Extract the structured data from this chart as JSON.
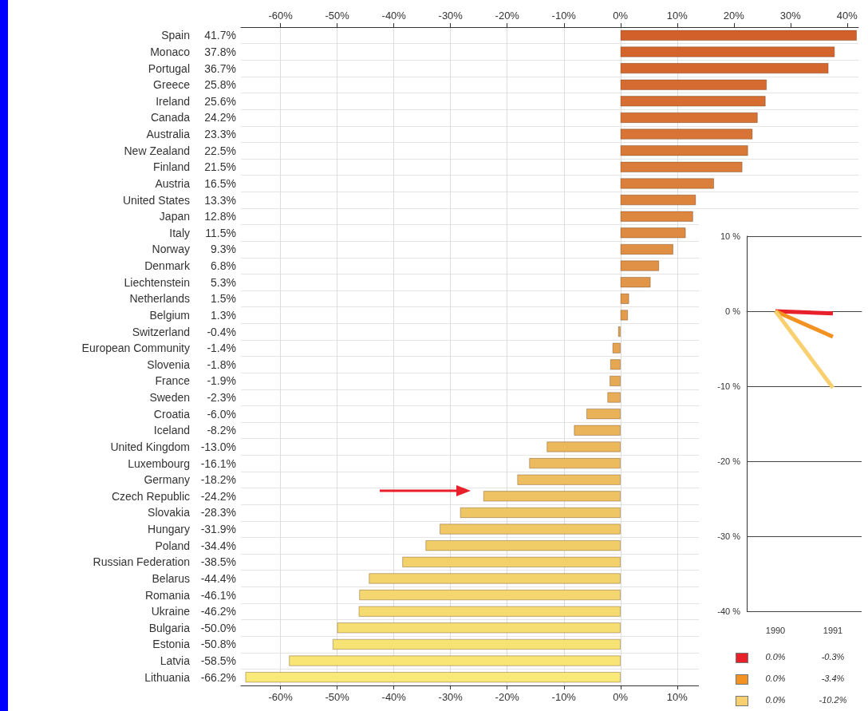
{
  "chart_data": [
    {
      "type": "bar",
      "orientation": "horizontal",
      "categories": [
        "Spain",
        "Monaco",
        "Portugal",
        "Greece",
        "Ireland",
        "Canada",
        "Australia",
        "New Zealand",
        "Finland",
        "Austria",
        "United States",
        "Japan",
        "Italy",
        "Norway",
        "Denmark",
        "Liechtenstein",
        "Netherlands",
        "Belgium",
        "Switzerland",
        "European Community",
        "Slovenia",
        "France",
        "Sweden",
        "Croatia",
        "Iceland",
        "United Kingdom",
        "Luxembourg",
        "Germany",
        "Czech Republic",
        "Slovakia",
        "Hungary",
        "Poland",
        "Russian Federation",
        "Belarus",
        "Romania",
        "Ukraine",
        "Bulgaria",
        "Estonia",
        "Latvia",
        "Lithuania"
      ],
      "values": [
        41.7,
        37.8,
        36.7,
        25.8,
        25.6,
        24.2,
        23.3,
        22.5,
        21.5,
        16.5,
        13.3,
        12.8,
        11.5,
        9.3,
        6.8,
        5.3,
        1.5,
        1.3,
        -0.4,
        -1.4,
        -1.8,
        -1.9,
        -2.3,
        -6.0,
        -8.2,
        -13.0,
        -16.1,
        -18.2,
        -24.2,
        -28.3,
        -31.9,
        -34.4,
        -38.5,
        -44.4,
        -46.1,
        -46.2,
        -50.0,
        -50.8,
        -58.5,
        -66.2
      ],
      "value_labels": [
        "41.7%",
        "37.8%",
        "36.7%",
        "25.8%",
        "25.6%",
        "24.2%",
        "23.3%",
        "22.5%",
        "21.5%",
        "16.5%",
        "13.3%",
        "12.8%",
        "11.5%",
        "9.3%",
        "6.8%",
        "5.3%",
        "1.5%",
        "1.3%",
        "-0.4%",
        "-1.4%",
        "-1.8%",
        "-1.9%",
        "-2.3%",
        "-6.0%",
        "-8.2%",
        "-13.0%",
        "-16.1%",
        "-18.2%",
        "-24.2%",
        "-28.3%",
        "-31.9%",
        "-34.4%",
        "-38.5%",
        "-44.4%",
        "-46.1%",
        "-46.2%",
        "-50.0%",
        "-50.8%",
        "-58.5%",
        "-66.2%"
      ],
      "colors": [
        "#d2602a",
        "#d3642c",
        "#d4672e",
        "#d56b30",
        "#d66e32",
        "#d77234",
        "#d87536",
        "#d97938",
        "#da7c3a",
        "#db803c",
        "#dc833e",
        "#dd8740",
        "#de8a42",
        "#df8e44",
        "#e09146",
        "#e19548",
        "#e2984a",
        "#e39c4c",
        "#e49f4e",
        "#e5a350",
        "#e6a652",
        "#e7aa54",
        "#e8ad56",
        "#e9b158",
        "#eab45a",
        "#ebb85c",
        "#ecbb5e",
        "#edbf60",
        "#eec262",
        "#efc664",
        "#f0c966",
        "#f1cd68",
        "#f2d06a",
        "#f3d46c",
        "#f4d76e",
        "#f5db70",
        "#f6de72",
        "#f7e274",
        "#f8e576",
        "#f9e978"
      ],
      "xlim": [
        -67,
        42
      ],
      "xticks": [
        {
          "value": -60,
          "label": "-60%"
        },
        {
          "value": -50,
          "label": "-50%"
        },
        {
          "value": -40,
          "label": "-40%"
        },
        {
          "value": -30,
          "label": "-30%"
        },
        {
          "value": -20,
          "label": "-20%"
        },
        {
          "value": -10,
          "label": "-10%"
        },
        {
          "value": 0,
          "label": "0%"
        },
        {
          "value": 10,
          "label": "10%"
        }
      ],
      "x2lim": [
        -67,
        42
      ],
      "x2ticks": [
        {
          "value": -60,
          "label": "-60%"
        },
        {
          "value": -50,
          "label": "-50%"
        },
        {
          "value": -40,
          "label": "-40%"
        },
        {
          "value": -30,
          "label": "-30%"
        },
        {
          "value": -20,
          "label": "-20%"
        },
        {
          "value": -10,
          "label": "-10%"
        },
        {
          "value": 0,
          "label": "0%"
        },
        {
          "value": 10,
          "label": "10%"
        },
        {
          "value": 20,
          "label": "20%"
        },
        {
          "value": 30,
          "label": "30%"
        },
        {
          "value": 40,
          "label": "40%"
        }
      ],
      "grid": true
    },
    {
      "type": "line",
      "categories": [
        "1990",
        "1991"
      ],
      "series": [
        {
          "color": "#e8202a",
          "values": [
            0.0,
            -0.3
          ],
          "value_labels": [
            "0.0%",
            "-0.3%"
          ]
        },
        {
          "color": "#f39220",
          "values": [
            0.0,
            -3.4
          ],
          "value_labels": [
            "0.0%",
            "-3.4%"
          ]
        },
        {
          "color": "#f8d070",
          "values": [
            0.0,
            -10.2
          ],
          "value_labels": [
            "0.0%",
            "-10.2%"
          ]
        }
      ],
      "ylim": [
        -40,
        10
      ],
      "yticks": [
        {
          "value": 10,
          "label": "10 %"
        },
        {
          "value": 0,
          "label": "0 %"
        },
        {
          "value": -10,
          "label": "-10 %"
        },
        {
          "value": -20,
          "label": "-20 %"
        },
        {
          "value": -30,
          "label": "-30 %"
        },
        {
          "value": -40,
          "label": "-40 %"
        }
      ],
      "grid": "y",
      "marker": "none"
    }
  ]
}
